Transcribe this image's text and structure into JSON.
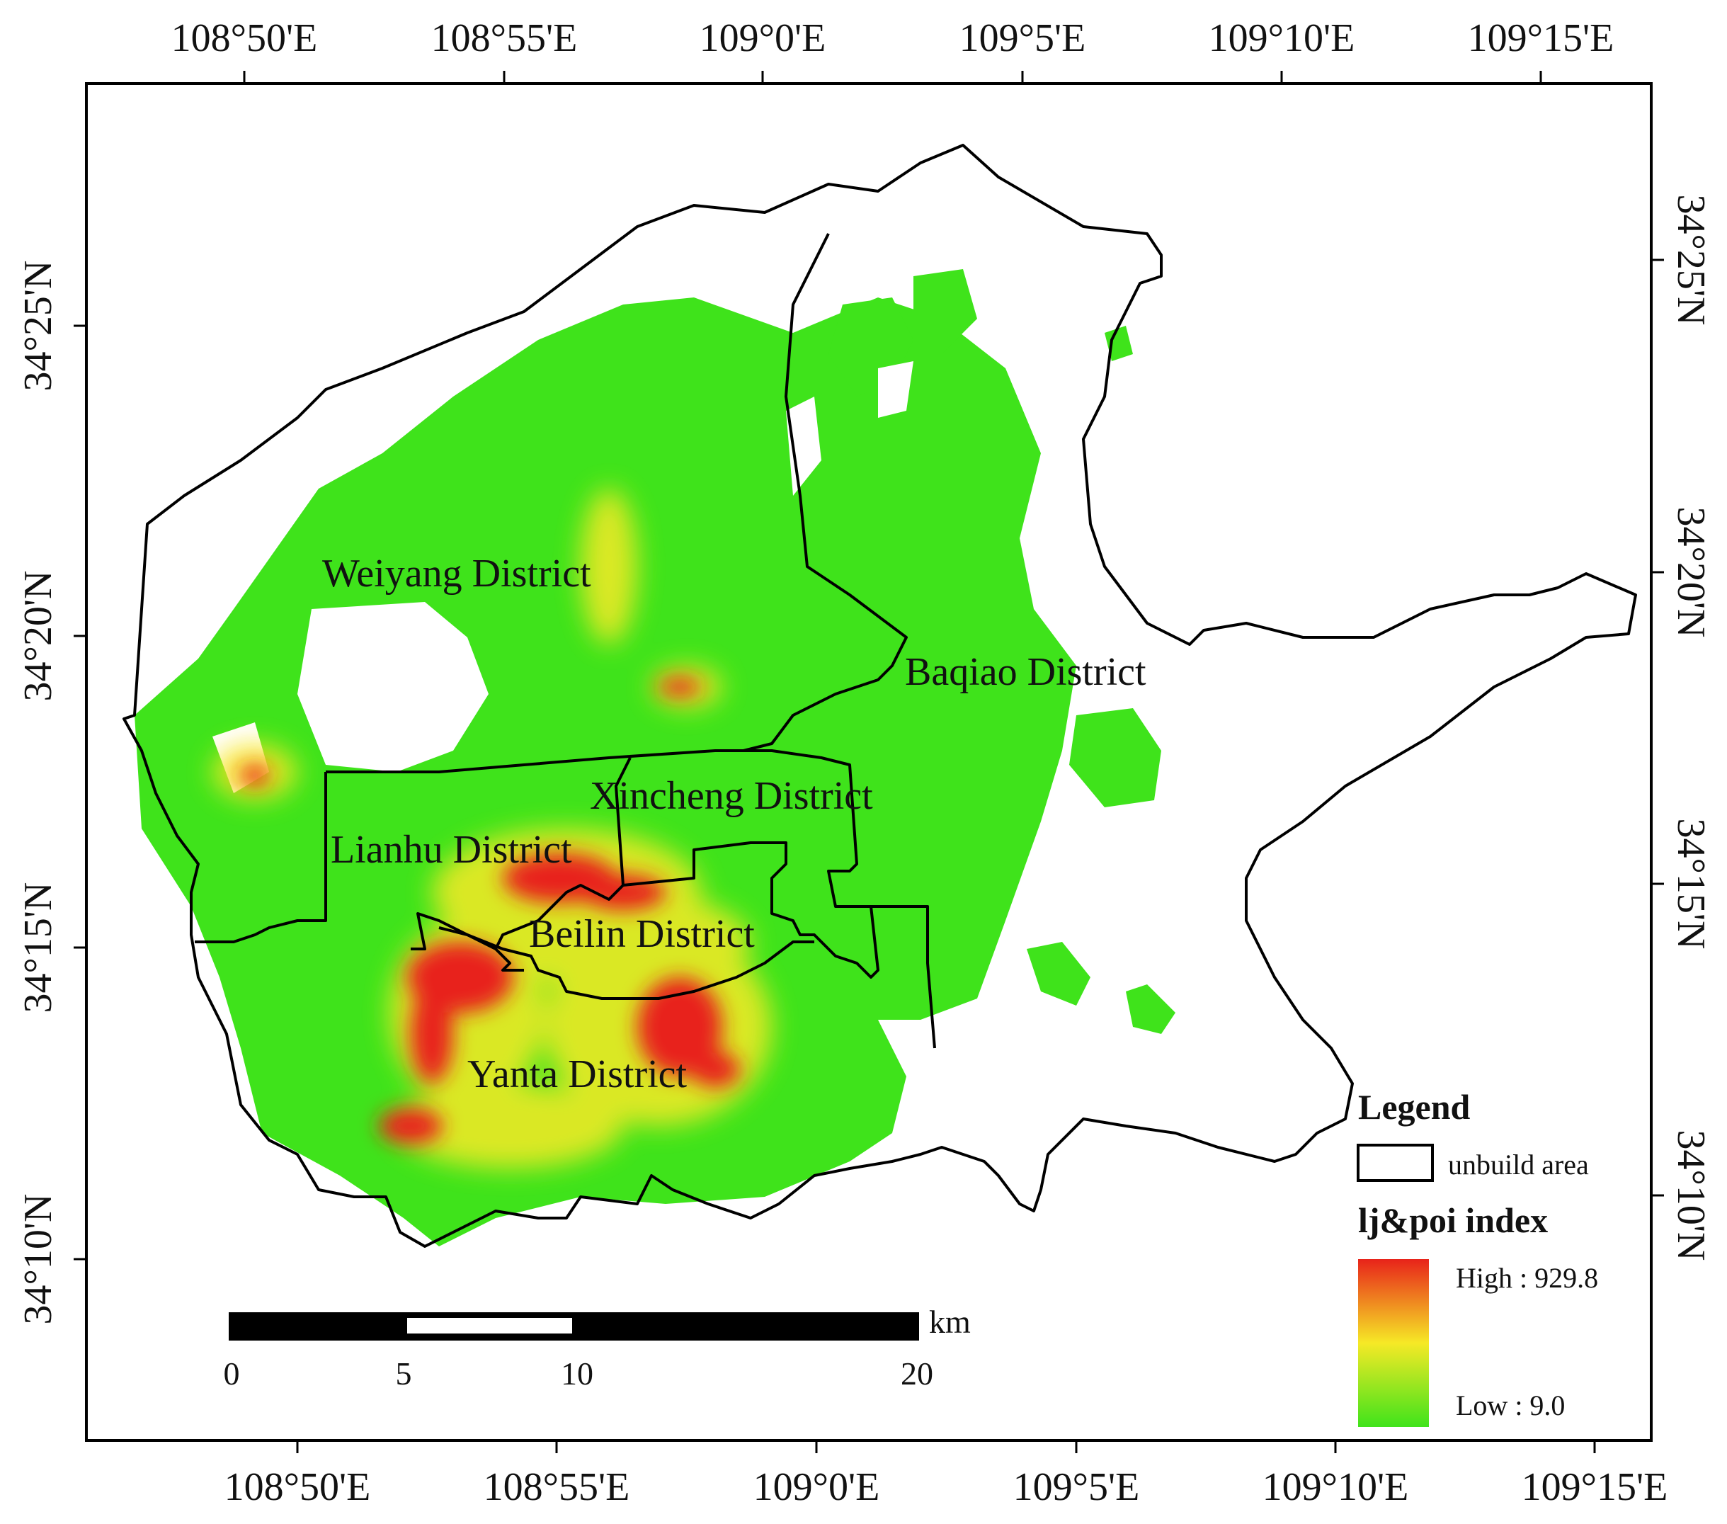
{
  "map": {
    "top_lon_ticks": [
      "108°50'E",
      "108°55'E",
      "109°0'E",
      "109°5'E",
      "109°10'E",
      "109°15'E"
    ],
    "bottom_lon_ticks": [
      "108°50'E",
      "108°55'E",
      "109°0'E",
      "109°5'E",
      "109°10'E",
      "109°15'E"
    ],
    "left_lat_ticks": [
      "34°25'N",
      "34°20'N",
      "34°15'N",
      "34°10'N"
    ],
    "right_lat_ticks": [
      "34°25'N",
      "34°20'N",
      "34°15'N",
      "34°10'N"
    ],
    "districts": [
      {
        "key": "weiyang",
        "name": "Weiyang District"
      },
      {
        "key": "baqiao",
        "name": "Baqiao District"
      },
      {
        "key": "xincheng",
        "name": "Xincheng District"
      },
      {
        "key": "lianhu",
        "name": "Lianhu District"
      },
      {
        "key": "beilin",
        "name": "Beilin District"
      },
      {
        "key": "yanta",
        "name": "Yanta District"
      }
    ],
    "colors": {
      "high": "#e8231a",
      "mid": "#f6e926",
      "low": "#3fe31b",
      "boundary": "#000000",
      "unbuild": "#ffffff"
    }
  },
  "legend": {
    "title": "Legend",
    "unbuild_label": "unbuild area",
    "index_title": "lj&poi index",
    "high_label": "High : 929.8",
    "low_label": "Low : 9.0"
  },
  "scale_bar": {
    "unit": "km",
    "labels": [
      "0",
      "5",
      "10",
      "20"
    ]
  }
}
